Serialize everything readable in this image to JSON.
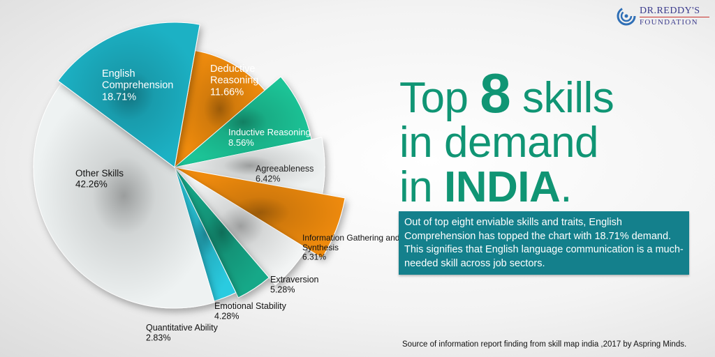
{
  "logo": {
    "line1": "DR.REDDY'S",
    "line2": "FOUNDATION"
  },
  "headline": {
    "w1": "Top",
    "w2": "8",
    "w3": "skills",
    "line2": "in demand",
    "w4": "in",
    "w5": "INDIA",
    "w6": "."
  },
  "info_text": "Out of top eight enviable skills and traits, English Comprehension has topped the chart with 18.71% demand. This signifies that English language communication is a much-needed skill across job sectors.",
  "source_text": "Source of information report finding from skill map india ,2017 by Aspring Minds.",
  "chart_data": {
    "type": "pie",
    "title": "",
    "slices": [
      {
        "label": "Deductive Reasoning",
        "value_label": "11.66%",
        "value": 11.66,
        "color": "#f08c10"
      },
      {
        "label": "Inductive Reasoning",
        "value_label": "8.56%",
        "value": 8.56,
        "color": "#1ec497"
      },
      {
        "label": "Agreeableness",
        "value_label": "6.42%",
        "value": 6.42,
        "color": "#eef1f1"
      },
      {
        "label": "Information Gathering and Synthesis",
        "value_label": "6.31%",
        "value": 6.31,
        "color": "#ee8a0f"
      },
      {
        "label": "Extraversion",
        "value_label": "5.28%",
        "value": 5.28,
        "color": "#f2f4f4"
      },
      {
        "label": "Emotional Stability",
        "value_label": "4.28%",
        "value": 4.28,
        "color": "#14a888"
      },
      {
        "label": "Quantitative Ability",
        "value_label": "2.83%",
        "value": 2.83,
        "color": "#2ccbe0"
      },
      {
        "label": "Other Skills",
        "value_label": "42.26%",
        "value": 42.26,
        "color": "#eef2f2"
      },
      {
        "label": "English Comprehension",
        "value_label": "18.71%",
        "value": 18.71,
        "color": "#1ab1c4"
      }
    ]
  }
}
